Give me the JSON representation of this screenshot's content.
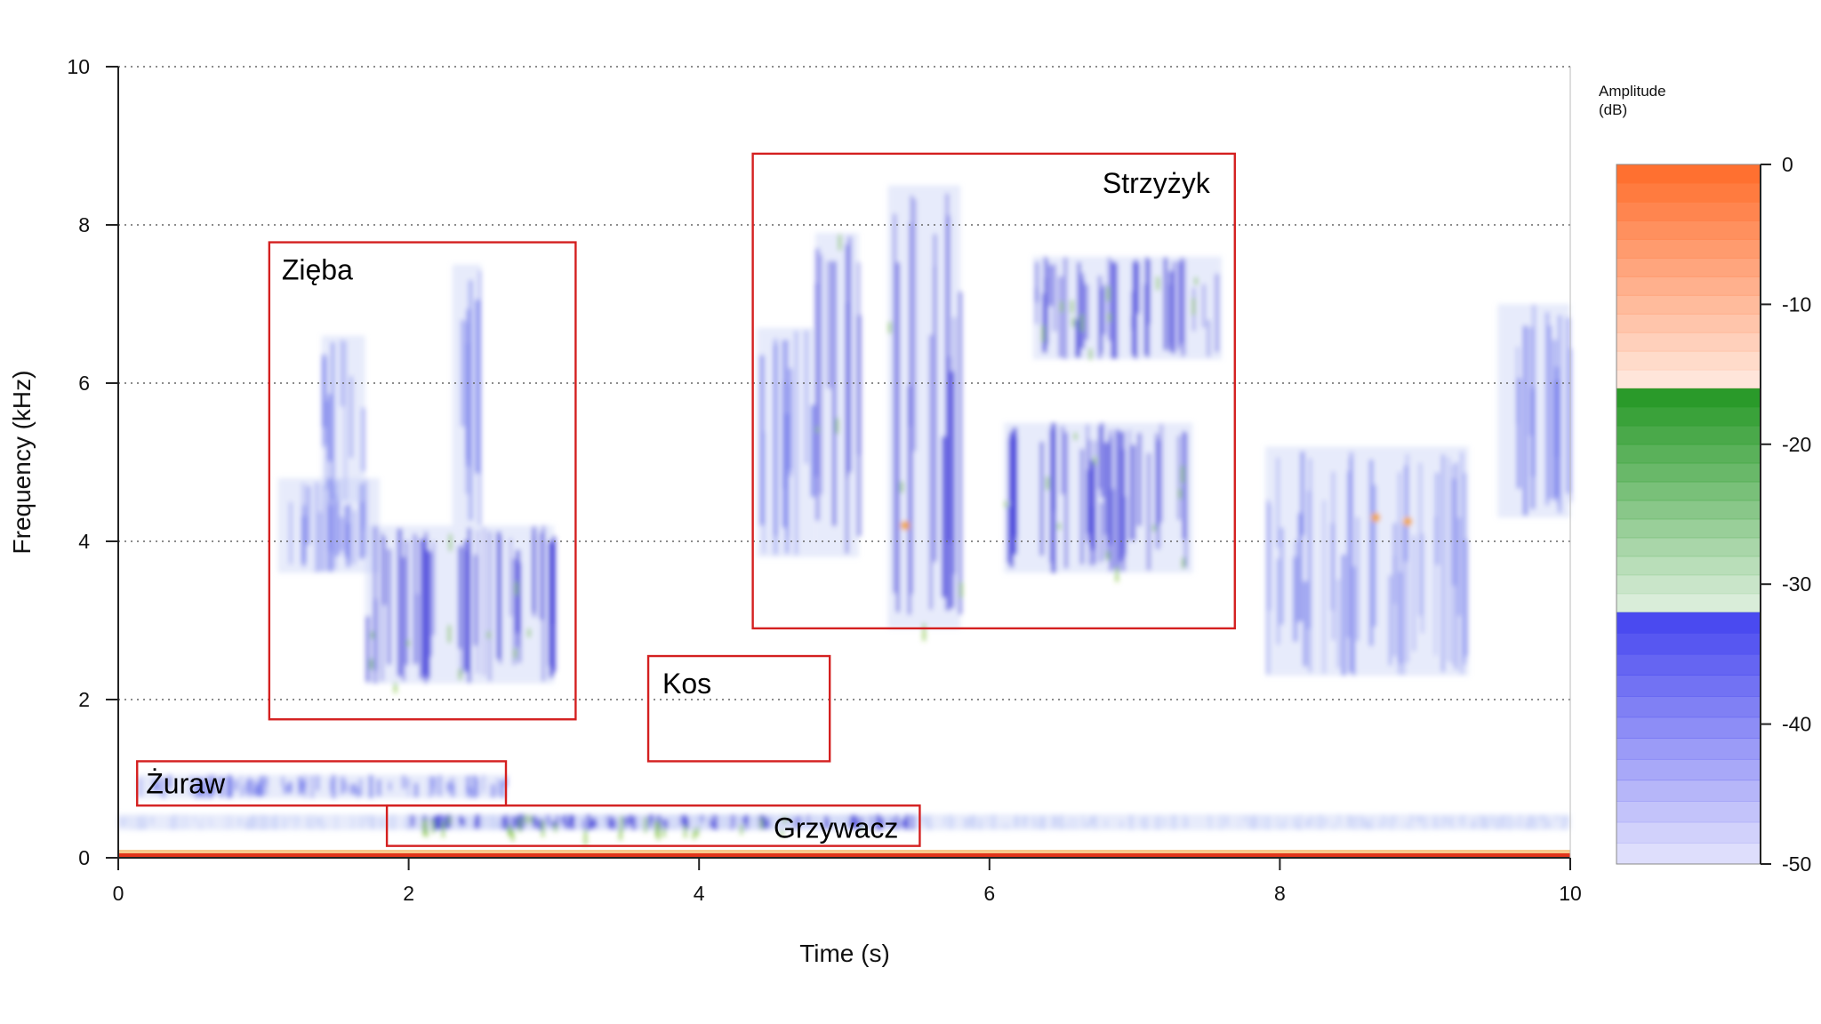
{
  "chart_data": {
    "type": "heatmap",
    "xlabel": "Time (s)",
    "ylabel": "Frequency (kHz)",
    "xlim": [
      0,
      10
    ],
    "ylim": [
      0,
      10
    ],
    "x_ticks": [
      "0",
      "2",
      "4",
      "6",
      "8",
      "10"
    ],
    "y_ticks": [
      "0",
      "2",
      "4",
      "6",
      "8",
      "10"
    ],
    "gridlines_y": [
      2,
      4,
      6,
      8
    ],
    "colorbar": {
      "title_line1": "Amplitude",
      "title_line2": "(dB)",
      "range": [
        -50,
        0
      ],
      "ticks": [
        "0",
        "-10",
        "-20",
        "-30",
        "-40",
        "-50"
      ],
      "bands": [
        {
          "from": -50,
          "to": -32,
          "color": "#4a4af0"
        },
        {
          "from": -32,
          "to": -16,
          "color": "#2a9a2a"
        },
        {
          "from": -16,
          "to": 0,
          "color": "#ff7030"
        }
      ]
    },
    "colors": {
      "box": "#d42020",
      "weak": "#c9d2f7",
      "medium": "#6f76ea",
      "strong": "#3c37d8",
      "green": "#7fbf3a",
      "hot": "#f2a640",
      "baseline": "#e2361b"
    },
    "annotations": [
      {
        "name": "Zięba",
        "t0": 1.04,
        "t1": 3.15,
        "f0": 1.75,
        "f1": 7.78
      },
      {
        "name": "Strzyżyk",
        "t0": 4.37,
        "t1": 7.69,
        "f0": 2.9,
        "f1": 8.9
      },
      {
        "name": "Kos",
        "t0": 3.65,
        "t1": 4.9,
        "f0": 1.22,
        "f1": 2.55
      },
      {
        "name": "Żuraw",
        "t0": 0.13,
        "t1": 2.67,
        "f0": 0.66,
        "f1": 1.22
      },
      {
        "name": "Grzywacz",
        "t0": 1.85,
        "t1": 5.52,
        "f0": 0.15,
        "f1": 0.66
      }
    ],
    "energy_regions": [
      {
        "t0": 1.1,
        "t1": 1.8,
        "f0": 3.6,
        "f1": 4.8,
        "level": "medium"
      },
      {
        "t0": 1.7,
        "t1": 3.0,
        "f0": 2.2,
        "f1": 4.2,
        "level": "strong"
      },
      {
        "t0": 1.4,
        "t1": 1.7,
        "f0": 4.5,
        "f1": 6.6,
        "level": "medium"
      },
      {
        "t0": 2.3,
        "t1": 2.5,
        "f0": 4.2,
        "f1": 7.5,
        "level": "medium"
      },
      {
        "t0": 4.8,
        "t1": 5.1,
        "f0": 3.8,
        "f1": 7.9,
        "level": "strong"
      },
      {
        "t0": 5.3,
        "t1": 5.8,
        "f0": 2.9,
        "f1": 8.5,
        "level": "strong"
      },
      {
        "t0": 6.3,
        "t1": 7.6,
        "f0": 6.3,
        "f1": 7.6,
        "level": "strong"
      },
      {
        "t0": 6.1,
        "t1": 7.4,
        "f0": 3.6,
        "f1": 5.5,
        "level": "strong"
      },
      {
        "t0": 4.4,
        "t1": 4.8,
        "f0": 3.8,
        "f1": 6.7,
        "level": "medium"
      },
      {
        "t0": 7.9,
        "t1": 9.3,
        "f0": 2.3,
        "f1": 5.2,
        "level": "medium"
      },
      {
        "t0": 9.5,
        "t1": 10.0,
        "f0": 4.3,
        "f1": 7.0,
        "level": "medium"
      },
      {
        "t0": 0.0,
        "t1": 10.0,
        "f0": 0.35,
        "f1": 0.55,
        "level": "weak"
      },
      {
        "t0": 0.13,
        "t1": 2.67,
        "f0": 0.75,
        "f1": 1.05,
        "level": "medium"
      },
      {
        "t0": 2.0,
        "t1": 5.5,
        "f0": 0.35,
        "f1": 0.55,
        "level": "strong"
      }
    ],
    "hot_spots": [
      {
        "t": 5.42,
        "f": 4.2
      },
      {
        "t": 8.66,
        "f": 4.3
      },
      {
        "t": 8.88,
        "f": 4.25
      }
    ]
  }
}
